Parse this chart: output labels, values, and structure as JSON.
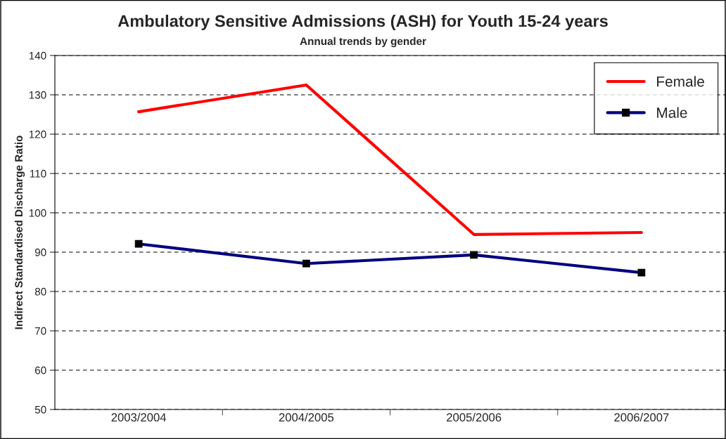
{
  "chart_data": {
    "type": "line",
    "title": "Ambulatory Sensitive Admissions (ASH) for Youth 15-24 years",
    "subtitle": "Annual trends by gender",
    "ylabel": "Indirect Standardised Discharge Ratio",
    "categories": [
      "2003/2004",
      "2004/2005",
      "2005/2006",
      "2006/2007"
    ],
    "series": [
      {
        "name": "Female",
        "color": "#ff0000",
        "values": [
          125.7,
          132.5,
          94.5,
          95.0
        ],
        "marker": "none"
      },
      {
        "name": "Male",
        "color": "#000080",
        "values": [
          92.1,
          87.1,
          89.3,
          84.8
        ],
        "marker": "square"
      }
    ],
    "ylim": [
      50,
      140
    ],
    "yticks": [
      50,
      60,
      70,
      80,
      90,
      100,
      110,
      120,
      130,
      140
    ],
    "grid": "y",
    "legend": "top right"
  }
}
